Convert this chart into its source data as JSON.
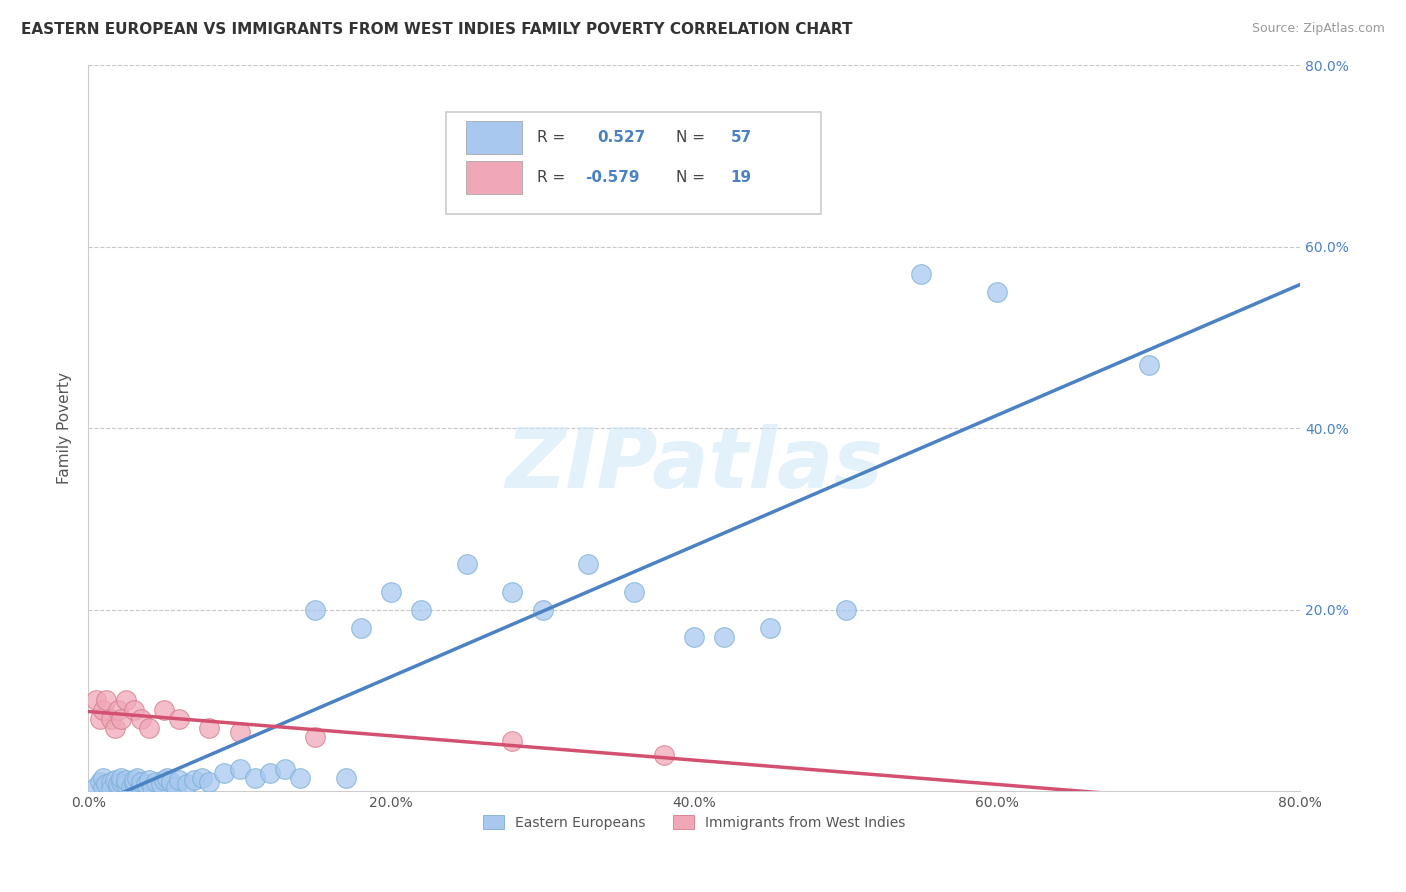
{
  "title": "EASTERN EUROPEAN VS IMMIGRANTS FROM WEST INDIES FAMILY POVERTY CORRELATION CHART",
  "source": "Source: ZipAtlas.com",
  "ylabel": "Family Poverty",
  "legend_bottom": [
    "Eastern Europeans",
    "Immigrants from West Indies"
  ],
  "series1_color": "#a8c8f0",
  "series1_edge": "#7aafd4",
  "series1_line_color": "#4a82c4",
  "series2_color": "#f0a8b8",
  "series2_edge": "#d47a8a",
  "series2_line_color": "#d45070",
  "xlim": [
    0.0,
    0.8
  ],
  "ylim": [
    0.0,
    0.8
  ],
  "xticks": [
    0.0,
    0.2,
    0.4,
    0.6,
    0.8
  ],
  "yticks": [
    0.2,
    0.4,
    0.6,
    0.8
  ],
  "xtick_labels": [
    "0.0%",
    "20.0%",
    "40.0%",
    "60.0%",
    "80.0%"
  ],
  "ytick_labels": [
    "20.0%",
    "40.0%",
    "60.0%",
    "80.0%"
  ],
  "background_color": "#ffffff",
  "grid_color": "#c8c8c8",
  "title_color": "#333333",
  "tick_label_color": "#4a82c4",
  "source_color": "#999999",
  "series1_x": [
    0.005,
    0.008,
    0.01,
    0.01,
    0.012,
    0.015,
    0.015,
    0.018,
    0.02,
    0.02,
    0.022,
    0.022,
    0.025,
    0.025,
    0.028,
    0.03,
    0.03,
    0.032,
    0.035,
    0.035,
    0.038,
    0.04,
    0.042,
    0.045,
    0.048,
    0.05,
    0.052,
    0.055,
    0.058,
    0.06,
    0.065,
    0.07,
    0.075,
    0.08,
    0.09,
    0.1,
    0.11,
    0.12,
    0.13,
    0.14,
    0.15,
    0.17,
    0.18,
    0.2,
    0.22,
    0.25,
    0.28,
    0.3,
    0.33,
    0.36,
    0.4,
    0.42,
    0.45,
    0.5,
    0.55,
    0.6,
    0.7
  ],
  "series1_y": [
    0.005,
    0.01,
    0.005,
    0.015,
    0.008,
    0.01,
    0.003,
    0.012,
    0.005,
    0.008,
    0.01,
    0.015,
    0.008,
    0.012,
    0.005,
    0.008,
    0.012,
    0.015,
    0.005,
    0.01,
    0.008,
    0.012,
    0.005,
    0.01,
    0.008,
    0.012,
    0.015,
    0.01,
    0.005,
    0.012,
    0.008,
    0.012,
    0.015,
    0.01,
    0.02,
    0.025,
    0.015,
    0.02,
    0.025,
    0.015,
    0.2,
    0.015,
    0.18,
    0.22,
    0.2,
    0.25,
    0.22,
    0.2,
    0.25,
    0.22,
    0.17,
    0.17,
    0.18,
    0.2,
    0.57,
    0.55,
    0.47
  ],
  "series2_x": [
    0.005,
    0.008,
    0.01,
    0.012,
    0.015,
    0.018,
    0.02,
    0.022,
    0.025,
    0.03,
    0.035,
    0.04,
    0.05,
    0.06,
    0.08,
    0.1,
    0.15,
    0.28,
    0.38
  ],
  "series2_y": [
    0.1,
    0.08,
    0.09,
    0.1,
    0.08,
    0.07,
    0.09,
    0.08,
    0.1,
    0.09,
    0.08,
    0.07,
    0.09,
    0.08,
    0.07,
    0.065,
    0.06,
    0.055,
    0.04
  ],
  "legend_R1": "0.527",
  "legend_N1": "57",
  "legend_R2": "-0.579",
  "legend_N2": "19",
  "watermark_text": "ZIPatlas"
}
